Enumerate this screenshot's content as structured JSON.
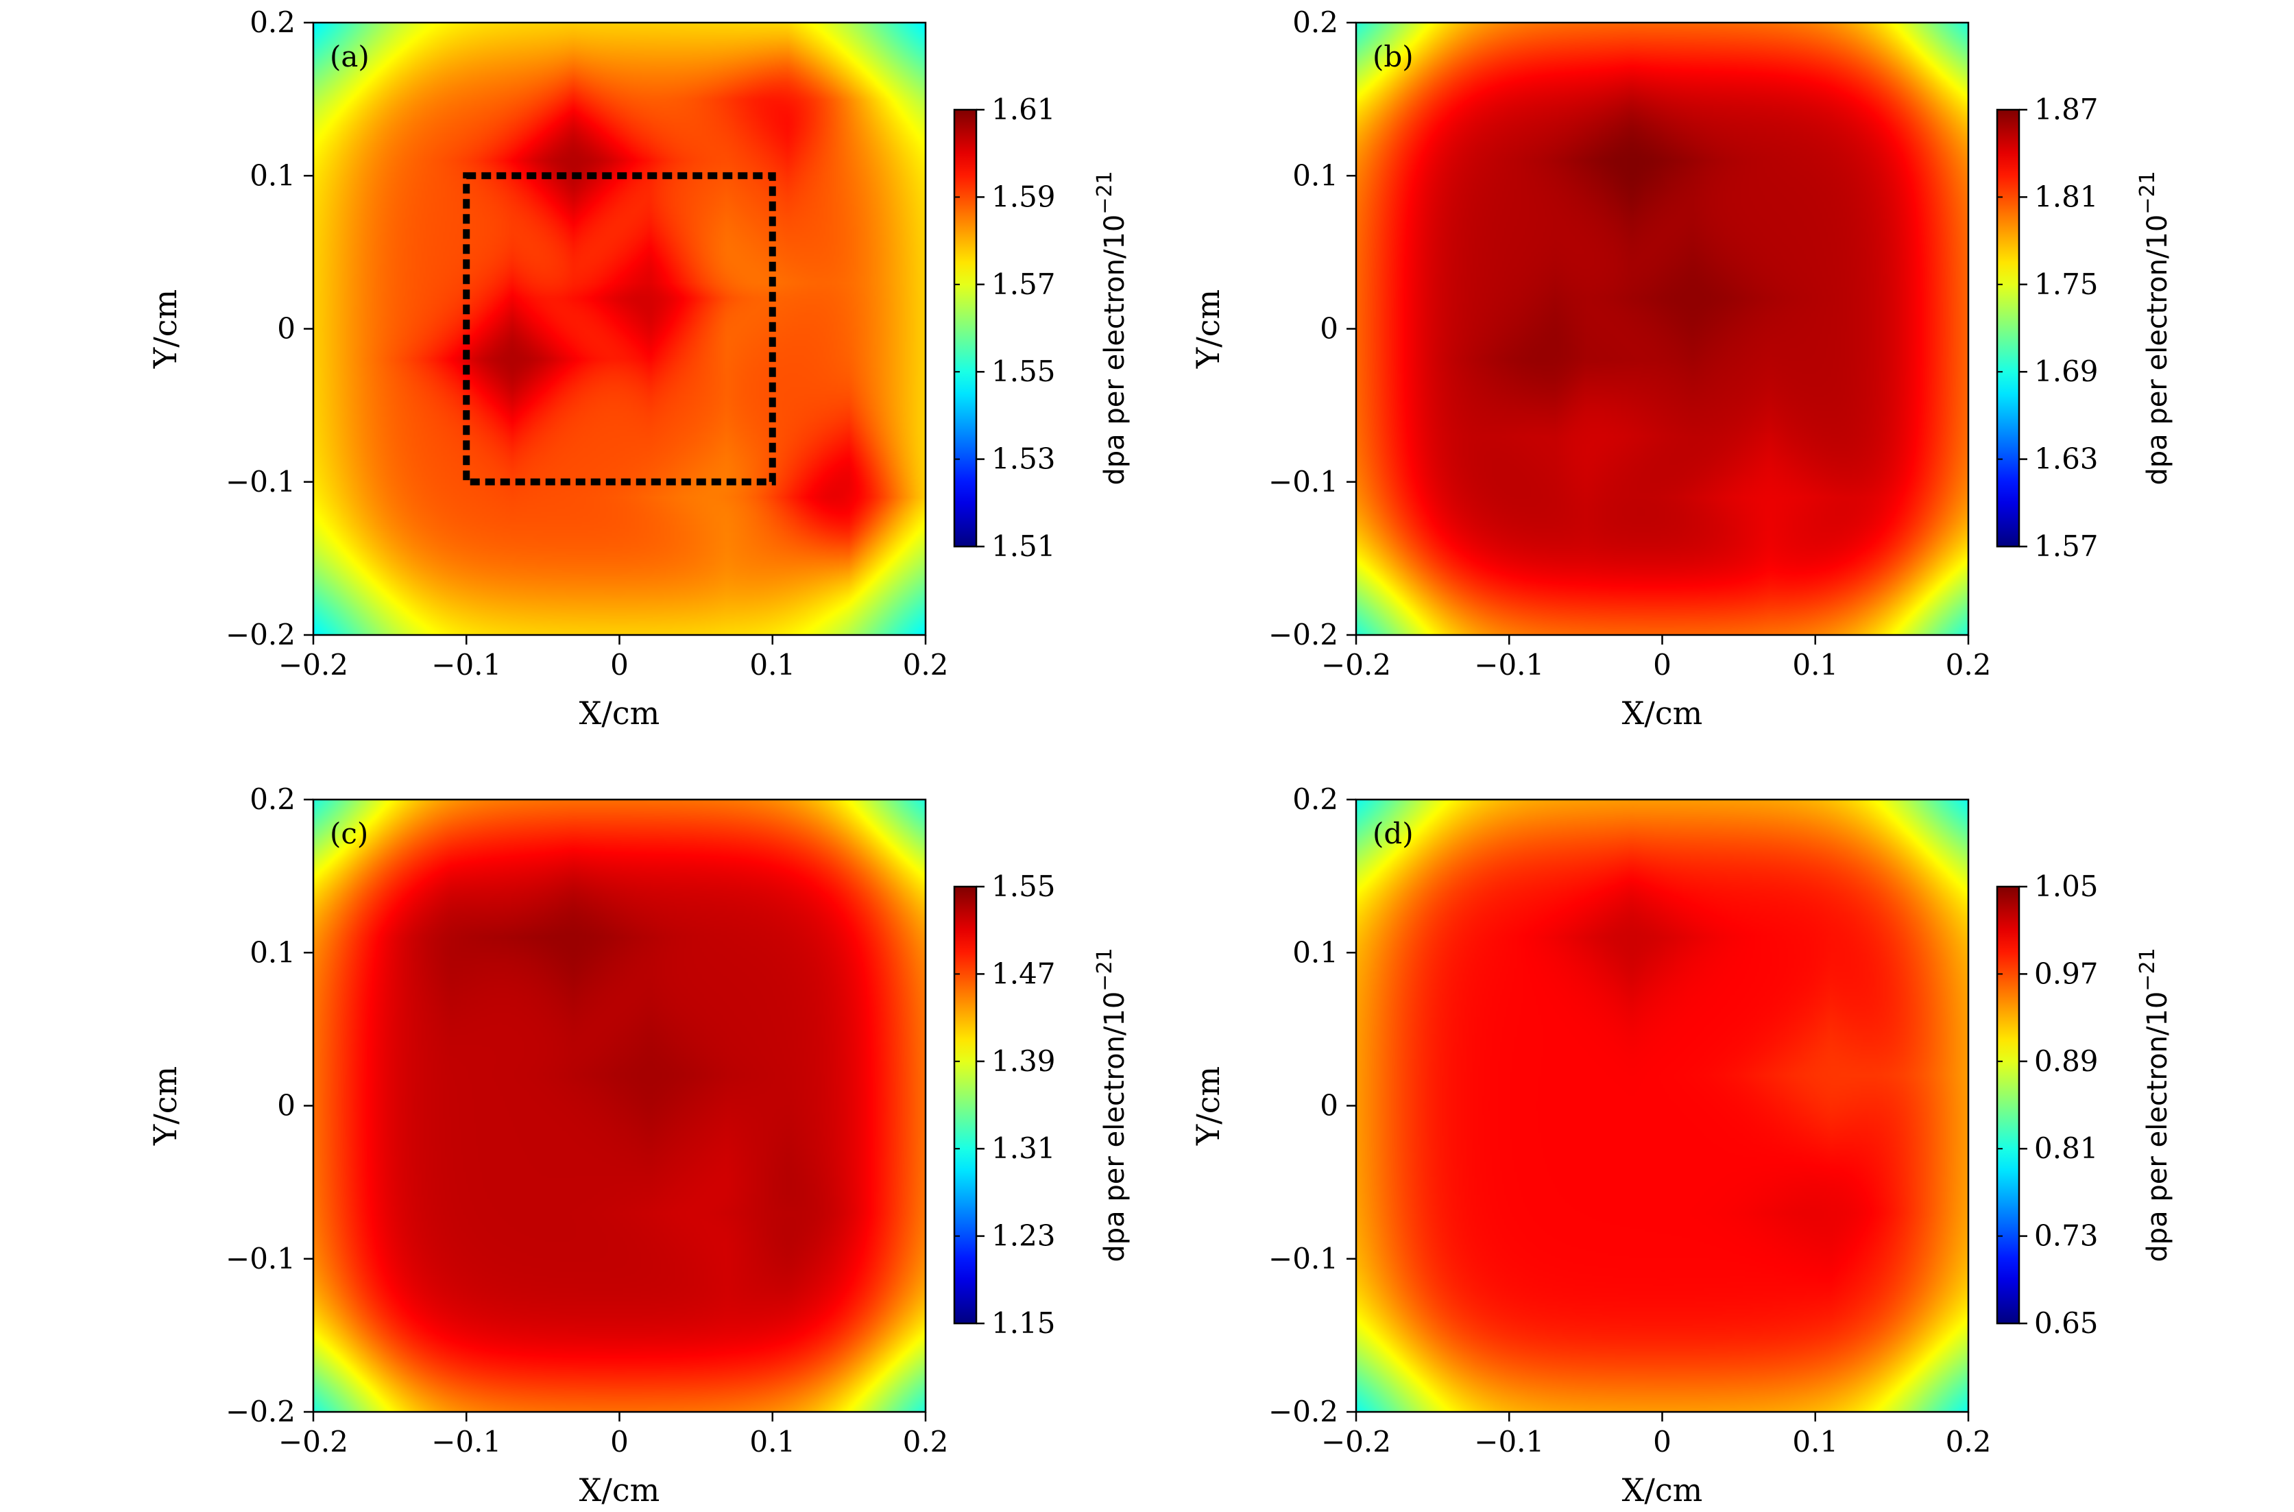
{
  "chart_data": [
    {
      "type": "heatmap",
      "panel_label": "(a)",
      "xlabel": "X/cm",
      "ylabel": "Y/cm",
      "xlim": [
        -0.2,
        0.2
      ],
      "ylim": [
        -0.2,
        0.2
      ],
      "xticks": [
        "−0.2",
        "−0.1",
        "0",
        "0.1",
        "0.2"
      ],
      "yticks": [
        "−0.2",
        "−0.1",
        "0",
        "0.1",
        "0.2"
      ],
      "colorbar": {
        "label": "dpa per electron/10",
        "label_exponent": "−21",
        "min": 1.51,
        "max": 1.61,
        "ticks": [
          "1.51",
          "1.53",
          "1.55",
          "1.57",
          "1.59",
          "1.61"
        ]
      },
      "plateau_value": 1.59,
      "hotspots": [
        {
          "x": -0.07,
          "y": -0.02,
          "value": 1.605
        },
        {
          "x": -0.03,
          "y": 0.11,
          "value": 1.605
        },
        {
          "x": 0.02,
          "y": 0.02,
          "value": 1.603
        },
        {
          "x": 0.15,
          "y": -0.11,
          "value": 1.605
        },
        {
          "x": 0.11,
          "y": 0.15,
          "value": 1.6
        }
      ],
      "coolspots": [
        {
          "x": 0.07,
          "y": 0.03,
          "value": 1.585
        },
        {
          "x": 0.07,
          "y": -0.11,
          "value": 1.585
        }
      ],
      "region_box": {
        "x0": -0.1,
        "x1": 0.1,
        "y0": -0.1,
        "y1": 0.1
      }
    },
    {
      "type": "heatmap",
      "panel_label": "(b)",
      "xlabel": "X/cm",
      "ylabel": "Y/cm",
      "xlim": [
        -0.2,
        0.2
      ],
      "ylim": [
        -0.2,
        0.2
      ],
      "xticks": [
        "−0.2",
        "−0.1",
        "0",
        "0.1",
        "0.2"
      ],
      "yticks": [
        "−0.2",
        "−0.1",
        "0",
        "0.1",
        "0.2"
      ],
      "colorbar": {
        "label": "dpa per electron/10",
        "label_exponent": "−21",
        "min": 1.57,
        "max": 1.87,
        "ticks": [
          "1.57",
          "1.63",
          "1.69",
          "1.75",
          "1.81",
          "1.87"
        ]
      },
      "plateau_value": 1.855,
      "hotspots": [
        {
          "x": -0.02,
          "y": 0.11,
          "value": 1.87
        },
        {
          "x": -0.07,
          "y": -0.02,
          "value": 1.865
        },
        {
          "x": 0.02,
          "y": 0.02,
          "value": 1.865
        }
      ],
      "coolspots": [
        {
          "x": 0.07,
          "y": -0.11,
          "value": 1.84
        },
        {
          "x": -0.05,
          "y": -0.07,
          "value": 1.845
        }
      ],
      "region_box": null
    },
    {
      "type": "heatmap",
      "panel_label": "(c)",
      "xlabel": "X/cm",
      "ylabel": "Y/cm",
      "xlim": [
        -0.2,
        0.2
      ],
      "ylim": [
        -0.2,
        0.2
      ],
      "xticks": [
        "−0.2",
        "−0.1",
        "0",
        "0.1",
        "0.2"
      ],
      "yticks": [
        "−0.2",
        "−0.1",
        "0",
        "0.1",
        "0.2"
      ],
      "colorbar": {
        "label": "dpa per electron/10",
        "label_exponent": "−21",
        "min": 1.15,
        "max": 1.55,
        "ticks": [
          "1.15",
          "1.23",
          "1.31",
          "1.39",
          "1.47",
          "1.55"
        ]
      },
      "plateau_value": 1.525,
      "hotspots": [
        {
          "x": -0.03,
          "y": 0.11,
          "value": 1.54
        },
        {
          "x": 0.02,
          "y": 0.02,
          "value": 1.535
        },
        {
          "x": -0.11,
          "y": 0.11,
          "value": 1.535
        },
        {
          "x": 0.11,
          "y": -0.07,
          "value": 1.535
        }
      ],
      "coolspots": [
        {
          "x": 0.07,
          "y": -0.07,
          "value": 1.515
        }
      ],
      "region_box": null
    },
    {
      "type": "heatmap",
      "panel_label": "(d)",
      "xlabel": "X/cm",
      "ylabel": "Y/cm",
      "xlim": [
        -0.2,
        0.2
      ],
      "ylim": [
        -0.2,
        0.2
      ],
      "xticks": [
        "−0.2",
        "−0.1",
        "0",
        "0.1",
        "0.2"
      ],
      "yticks": [
        "−0.2",
        "−0.1",
        "0",
        "0.1",
        "0.2"
      ],
      "colorbar": {
        "label": "dpa per electron/10",
        "label_exponent": "−21",
        "min": 0.65,
        "max": 1.05,
        "ticks": [
          "0.65",
          "0.73",
          "0.81",
          "0.89",
          "0.97",
          "1.05"
        ]
      },
      "plateau_value": 1.0,
      "hotspots": [
        {
          "x": -0.02,
          "y": 0.11,
          "value": 1.02
        },
        {
          "x": 0.11,
          "y": -0.07,
          "value": 1.01
        }
      ],
      "coolspots": [
        {
          "x": 0.11,
          "y": 0.02,
          "value": 0.98
        }
      ],
      "region_box": null
    }
  ]
}
